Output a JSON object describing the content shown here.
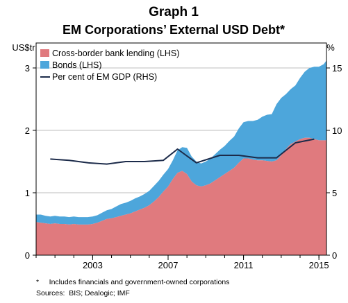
{
  "chart_data": {
    "type": "area",
    "title": "Graph 1",
    "subtitle": "EM Corporations’ External USD Debt*",
    "left_unit": "US$tr",
    "right_unit": "%",
    "xlim": [
      2000.0,
      2015.4
    ],
    "left_ylim": [
      0,
      3.4
    ],
    "right_ylim": [
      0,
      17
    ],
    "left_ticks": [
      "0",
      "1",
      "2",
      "3"
    ],
    "right_ticks": [
      "0",
      "5",
      "10",
      "15"
    ],
    "x_ticks": [
      {
        "value": 2003,
        "label": "2003"
      },
      {
        "value": 2007,
        "label": "2007"
      },
      {
        "value": 2011,
        "label": "2011"
      },
      {
        "value": 2015,
        "label": "2015"
      }
    ],
    "grid": "horizontal",
    "legend_position": "top-left",
    "x": [
      2000.0,
      2000.25,
      2000.5,
      2000.75,
      2001.0,
      2001.25,
      2001.5,
      2001.75,
      2002.0,
      2002.25,
      2002.5,
      2002.75,
      2003.0,
      2003.25,
      2003.5,
      2003.75,
      2004.0,
      2004.25,
      2004.5,
      2004.75,
      2005.0,
      2005.25,
      2005.5,
      2005.75,
      2006.0,
      2006.25,
      2006.5,
      2006.75,
      2007.0,
      2007.25,
      2007.5,
      2007.75,
      2008.0,
      2008.25,
      2008.5,
      2008.75,
      2009.0,
      2009.25,
      2009.5,
      2009.75,
      2010.0,
      2010.25,
      2010.5,
      2010.75,
      2011.0,
      2011.25,
      2011.5,
      2011.75,
      2012.0,
      2012.25,
      2012.5,
      2012.75,
      2013.0,
      2013.25,
      2013.5,
      2013.75,
      2014.0,
      2014.25,
      2014.5,
      2014.75,
      2015.0,
      2015.25,
      2015.4
    ],
    "series": [
      {
        "name": "Cross-border bank lending (LHS)",
        "axis": "left",
        "color": "#e07a7e",
        "values": [
          0.53,
          0.52,
          0.51,
          0.5,
          0.51,
          0.5,
          0.5,
          0.49,
          0.5,
          0.49,
          0.49,
          0.49,
          0.5,
          0.52,
          0.55,
          0.58,
          0.59,
          0.61,
          0.63,
          0.65,
          0.67,
          0.7,
          0.73,
          0.76,
          0.8,
          0.86,
          0.93,
          1.02,
          1.1,
          1.22,
          1.32,
          1.35,
          1.3,
          1.18,
          1.12,
          1.1,
          1.12,
          1.15,
          1.2,
          1.25,
          1.3,
          1.35,
          1.4,
          1.48,
          1.55,
          1.55,
          1.53,
          1.52,
          1.52,
          1.51,
          1.5,
          1.52,
          1.6,
          1.7,
          1.78,
          1.82,
          1.86,
          1.88,
          1.88,
          1.86,
          1.84,
          1.84,
          1.84
        ]
      },
      {
        "name": "Bonds (LHS)",
        "axis": "left",
        "color": "#4da6db",
        "values": [
          0.12,
          0.13,
          0.12,
          0.12,
          0.12,
          0.12,
          0.12,
          0.12,
          0.12,
          0.12,
          0.12,
          0.12,
          0.12,
          0.12,
          0.13,
          0.14,
          0.15,
          0.17,
          0.19,
          0.19,
          0.2,
          0.21,
          0.21,
          0.22,
          0.23,
          0.25,
          0.26,
          0.27,
          0.28,
          0.3,
          0.36,
          0.38,
          0.42,
          0.4,
          0.38,
          0.37,
          0.38,
          0.4,
          0.42,
          0.44,
          0.45,
          0.48,
          0.5,
          0.55,
          0.58,
          0.6,
          0.62,
          0.65,
          0.7,
          0.74,
          0.76,
          0.9,
          0.92,
          0.88,
          0.88,
          0.9,
          0.98,
          1.06,
          1.12,
          1.16,
          1.18,
          1.22,
          1.28
        ]
      },
      {
        "name": "Per cent of EM GDP (RHS)",
        "axis": "right",
        "type": "line",
        "color": "#1c2b4a",
        "points": [
          [
            2000.75,
            7.7
          ],
          [
            2001.75,
            7.6
          ],
          [
            2002.75,
            7.4
          ],
          [
            2003.75,
            7.3
          ],
          [
            2004.75,
            7.5
          ],
          [
            2005.75,
            7.5
          ],
          [
            2006.75,
            7.6
          ],
          [
            2007.5,
            8.5
          ],
          [
            2008.5,
            7.4
          ],
          [
            2009.75,
            8.0
          ],
          [
            2010.75,
            8.0
          ],
          [
            2011.75,
            7.8
          ],
          [
            2012.75,
            7.8
          ],
          [
            2013.75,
            9.0
          ],
          [
            2014.75,
            9.3
          ]
        ]
      }
    ],
    "footnote": "*     Includes financials and government-owned corporations",
    "sources": "Sources:  BIS; Dealogic; IMF"
  }
}
